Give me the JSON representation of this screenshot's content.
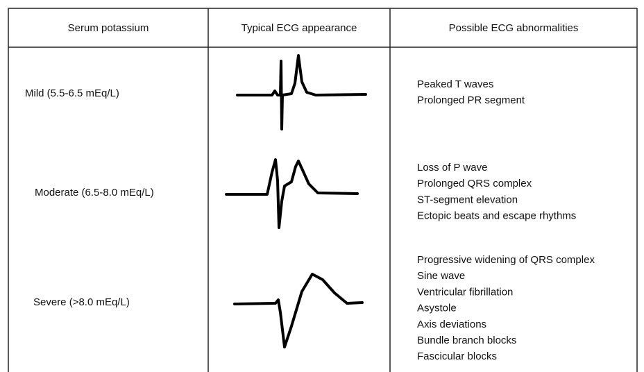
{
  "table": {
    "header": [
      "Serum potassium",
      "Typical ECG appearance",
      "Possible ECG abnormalities"
    ],
    "rows": [
      {
        "level": "Mild (5.5-6.5 mEq/L)",
        "abnormalities": [
          "Peaked T waves",
          "Prolonged PR segment"
        ]
      },
      {
        "level": "Moderate (6.5-8.0 mEq/L)",
        "abnormalities": [
          "Loss of P wave",
          "Prolonged QRS complex",
          "ST-segment elevation",
          "Ectopic beats and escape rhythms"
        ]
      },
      {
        "level": "Severe (>8.0 mEq/L)",
        "abnormalities": [
          "Progressive widening of QRS complex",
          "Sine wave",
          "Ventricular fibrillation",
          "Asystole",
          "Axis deviations",
          "Bundle branch blocks",
          "Fascicular blocks"
        ]
      }
    ]
  }
}
